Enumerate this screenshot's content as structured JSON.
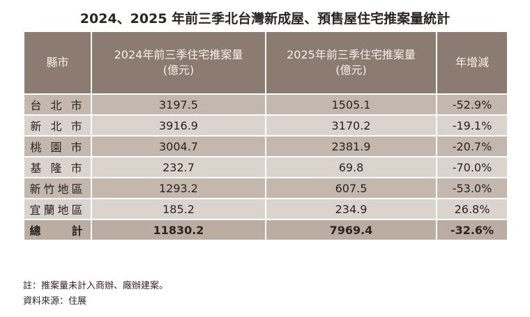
{
  "title": "2024、2025 年前三季北台灣新成屋、預售屋住宅推案量統計",
  "headers": [
    "縣市",
    "2024年前三季住宅推案量",
    "(億元)",
    "2025年前三季住宅推案量",
    "(億元)",
    "年增減"
  ],
  "rows": [
    {
      "city": "台 北 市",
      "y2024": "3197.5",
      "y2025": "1505.1",
      "change": "-52.9%"
    },
    {
      "city": "新 北 市",
      "y2024": "3916.9",
      "y2025": "3170.2",
      "change": "-19.1%"
    },
    {
      "city": "桃 園 市",
      "y2024": "3004.7",
      "y2025": "2381.9",
      "change": "-20.7%"
    },
    {
      "city": "基 隆 市",
      "y2024": "232.7",
      "y2025": "69.8",
      "change": "-70.0%"
    },
    {
      "city": "新竹地區",
      "y2024": "1293.2",
      "y2025": "607.5",
      "change": "-53.0%"
    },
    {
      "city": "宜蘭地區",
      "y2024": "185.2",
      "y2025": "234.9",
      "change": "26.8%"
    }
  ],
  "total": {
    "city": "總　　計",
    "y2024": "11830.2",
    "y2025": "7969.4",
    "change": "-32.6%"
  },
  "notes": [
    "註：推案量未計入商辦、廠辦建案。",
    "資料來源：住展"
  ]
}
